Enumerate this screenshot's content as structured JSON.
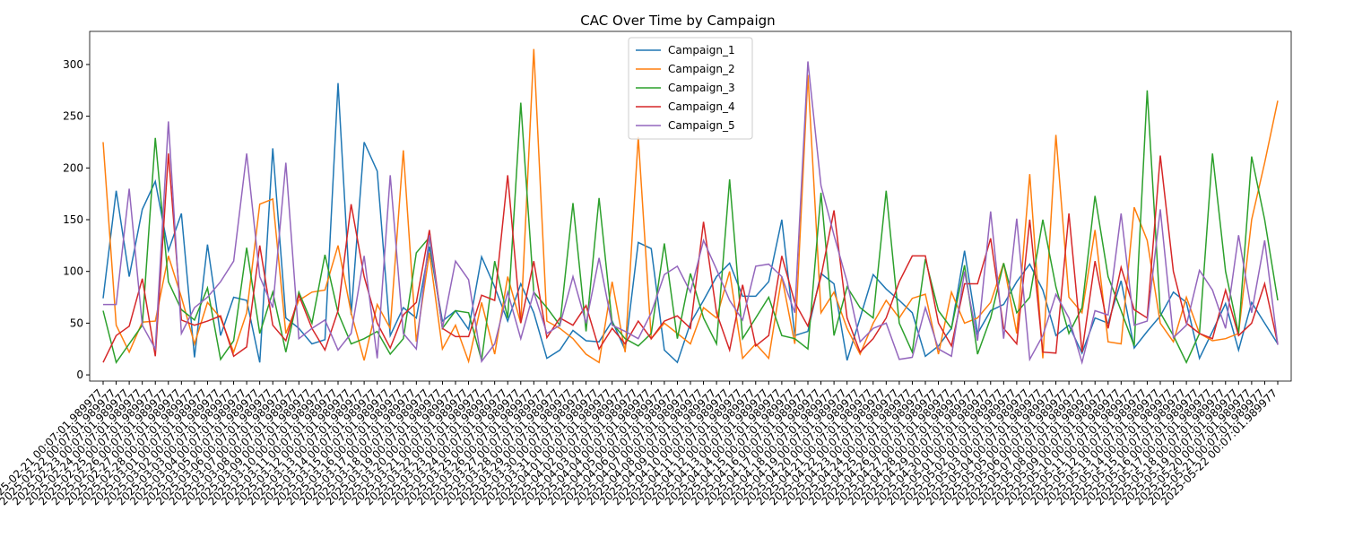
{
  "chart_data": {
    "type": "line",
    "title": "CAC Over Time by Campaign",
    "x": [
      "2025-02-21 00:07:01.989977",
      "2025-02-22 00:07:01.989977",
      "2025-02-23 00:07:01.989977",
      "2025-02-24 00:07:01.989977",
      "2025-02-25 00:07:01.989977",
      "2025-02-26 00:07:01.989977",
      "2025-02-27 00:07:01.989977",
      "2025-02-28 00:07:01.989977",
      "2025-03-01 00:07:01.989977",
      "2025-03-02 00:07:01.989977",
      "2025-03-03 00:07:01.989977",
      "2025-03-04 00:07:01.989977",
      "2025-03-05 00:07:01.989977",
      "2025-03-06 00:07:01.989977",
      "2025-03-07 00:07:01.989977",
      "2025-03-08 00:07:01.989977",
      "2025-03-09 00:07:01.989977",
      "2025-03-10 00:07:01.989977",
      "2025-03-11 00:07:01.989977",
      "2025-03-12 00:07:01.989977",
      "2025-03-13 00:07:01.989977",
      "2025-03-14 00:07:01.989977",
      "2025-03-15 00:07:01.989977",
      "2025-03-16 00:07:01.989977",
      "2025-03-17 00:07:01.989977",
      "2025-03-18 00:07:01.989977",
      "2025-03-19 00:07:01.989977",
      "2025-03-20 00:07:01.989977",
      "2025-03-21 00:07:01.989977",
      "2025-03-22 00:07:01.989977",
      "2025-03-23 00:07:01.989977",
      "2025-03-24 00:07:01.989977",
      "2025-03-25 00:07:01.989977",
      "2025-03-26 00:07:01.989977",
      "2025-03-27 00:07:01.989977",
      "2025-03-28 00:07:01.989977",
      "2025-03-29 00:07:01.989977",
      "2025-03-30 00:07:01.989977",
      "2025-03-31 00:07:01.989977",
      "2025-04-01 00:07:01.989977",
      "2025-04-02 00:07:01.989977",
      "2025-04-03 00:07:01.989977",
      "2025-04-04 00:07:01.989977",
      "2025-04-05 00:07:01.989977",
      "2025-04-06 00:07:01.989977",
      "2025-04-07 00:07:01.989977",
      "2025-04-08 00:07:01.989977",
      "2025-04-09 00:07:01.989977",
      "2025-04-10 00:07:01.989977",
      "2025-04-11 00:07:01.989977",
      "2025-04-12 00:07:01.989977",
      "2025-04-13 00:07:01.989977",
      "2025-04-14 00:07:01.989977",
      "2025-04-15 00:07:01.989977",
      "2025-04-16 00:07:01.989977",
      "2025-04-17 00:07:01.989977",
      "2025-04-18 00:07:01.989977",
      "2025-04-19 00:07:01.989977",
      "2025-04-20 00:07:01.989977",
      "2025-04-21 00:07:01.989977",
      "2025-04-22 00:07:01.989977",
      "2025-04-23 00:07:01.989977",
      "2025-04-24 00:07:01.989977",
      "2025-04-25 00:07:01.989977",
      "2025-04-26 00:07:01.989977",
      "2025-04-27 00:07:01.989977",
      "2025-04-28 00:07:01.989977",
      "2025-04-29 00:07:01.989977",
      "2025-04-30 00:07:01.989977",
      "2025-05-01 00:07:01.989977",
      "2025-05-02 00:07:01.989977",
      "2025-05-03 00:07:01.989977",
      "2025-05-04 00:07:01.989977",
      "2025-05-05 00:07:01.989977",
      "2025-05-06 00:07:01.989977",
      "2025-05-07 00:07:01.989977",
      "2025-05-08 00:07:01.989977",
      "2025-05-09 00:07:01.989977",
      "2025-05-10 00:07:01.989977",
      "2025-05-11 00:07:01.989977",
      "2025-05-12 00:07:01.989977",
      "2025-05-13 00:07:01.989977",
      "2025-05-14 00:07:01.989977",
      "2025-05-15 00:07:01.989977",
      "2025-05-16 00:07:01.989977",
      "2025-05-17 00:07:01.989977",
      "2025-05-18 00:07:01.989977",
      "2025-05-19 00:07:01.989977",
      "2025-05-20 00:07:01.989977",
      "2025-05-21 00:07:01.989977",
      "2025-05-22 00:07:01.989977"
    ],
    "series": [
      {
        "name": "Campaign_1",
        "color": "#1f77b4",
        "values": [
          74,
          178,
          95,
          160,
          187,
          120,
          156,
          17,
          126,
          38,
          75,
          72,
          12,
          219,
          55,
          45,
          30,
          34,
          282,
          58,
          225,
          197,
          38,
          65,
          55,
          124,
          52,
          62,
          44,
          114,
          85,
          52,
          88,
          60,
          16,
          24,
          43,
          33,
          32,
          52,
          24,
          128,
          122,
          24,
          12,
          50,
          72,
          95,
          108,
          76,
          76,
          90,
          150,
          38,
          42,
          98,
          88,
          14,
          55,
          97,
          83,
          72,
          60,
          18,
          28,
          45,
          120,
          40,
          62,
          68,
          90,
          107,
          82,
          38,
          48,
          21,
          55,
          50,
          91,
          26,
          42,
          57,
          80,
          70,
          16,
          42,
          69,
          24,
          70,
          50,
          30
        ]
      },
      {
        "name": "Campaign_2",
        "color": "#ff7f0e",
        "values": [
          225,
          48,
          22,
          51,
          52,
          115,
          75,
          30,
          70,
          55,
          22,
          60,
          165,
          170,
          40,
          72,
          80,
          82,
          125,
          60,
          14,
          68,
          45,
          217,
          32,
          118,
          25,
          48,
          13,
          70,
          20,
          95,
          50,
          315,
          52,
          45,
          35,
          20,
          12,
          90,
          22,
          230,
          35,
          50,
          40,
          30,
          65,
          55,
          100,
          16,
          30,
          16,
          95,
          30,
          290,
          60,
          80,
          45,
          20,
          50,
          72,
          55,
          74,
          78,
          20,
          80,
          50,
          55,
          70,
          108,
          40,
          194,
          16,
          232,
          75,
          60,
          140,
          32,
          30,
          162,
          130,
          50,
          32,
          75,
          40,
          33,
          35,
          40,
          150,
          205,
          265
        ]
      },
      {
        "name": "Campaign_3",
        "color": "#2ca02c",
        "values": [
          62,
          12,
          30,
          48,
          229,
          90,
          63,
          53,
          84,
          15,
          33,
          123,
          40,
          80,
          22,
          80,
          50,
          116,
          60,
          30,
          35,
          42,
          20,
          35,
          118,
          133,
          45,
          62,
          60,
          14,
          110,
          55,
          263,
          80,
          65,
          48,
          166,
          42,
          171,
          50,
          35,
          28,
          40,
          127,
          35,
          98,
          55,
          30,
          189,
          35,
          55,
          75,
          38,
          35,
          25,
          176,
          38,
          85,
          65,
          55,
          178,
          50,
          22,
          112,
          62,
          45,
          106,
          20,
          55,
          108,
          60,
          75,
          150,
          85,
          40,
          65,
          173,
          95,
          62,
          28,
          275,
          60,
          38,
          12,
          40,
          214,
          100,
          40,
          211,
          150,
          72
        ]
      },
      {
        "name": "Campaign_4",
        "color": "#d62728",
        "values": [
          12,
          38,
          47,
          93,
          18,
          214,
          53,
          48,
          52,
          57,
          18,
          27,
          125,
          48,
          33,
          77,
          45,
          24,
          62,
          165,
          95,
          50,
          26,
          58,
          70,
          140,
          45,
          37,
          37,
          77,
          72,
          193,
          50,
          110,
          36,
          55,
          48,
          67,
          25,
          45,
          30,
          52,
          35,
          52,
          57,
          45,
          148,
          60,
          24,
          87,
          28,
          38,
          115,
          70,
          47,
          95,
          159,
          55,
          22,
          35,
          55,
          90,
          115,
          115,
          50,
          28,
          88,
          88,
          132,
          45,
          30,
          150,
          22,
          21,
          156,
          22,
          110,
          45,
          104,
          63,
          55,
          212,
          100,
          50,
          40,
          35,
          82,
          38,
          50,
          88,
          30
        ]
      },
      {
        "name": "Campaign_5",
        "color": "#9467bd",
        "values": [
          68,
          68,
          180,
          48,
          25,
          245,
          40,
          65,
          75,
          90,
          110,
          214,
          95,
          65,
          205,
          35,
          45,
          53,
          24,
          40,
          115,
          16,
          193,
          40,
          25,
          135,
          45,
          110,
          92,
          13,
          30,
          80,
          35,
          80,
          40,
          48,
          95,
          50,
          113,
          48,
          42,
          35,
          60,
          97,
          105,
          80,
          130,
          102,
          72,
          53,
          105,
          107,
          95,
          60,
          303,
          183,
          135,
          90,
          32,
          45,
          50,
          15,
          17,
          65,
          25,
          18,
          100,
          33,
          158,
          35,
          151,
          15,
          38,
          78,
          55,
          12,
          62,
          58,
          156,
          48,
          52,
          160,
          36,
          48,
          101,
          82,
          45,
          135,
          60,
          130,
          29
        ]
      }
    ],
    "ylim": [
      -6,
      332
    ],
    "yticks": [
      0,
      50,
      100,
      150,
      200,
      250,
      300
    ],
    "legend": "upper center"
  }
}
